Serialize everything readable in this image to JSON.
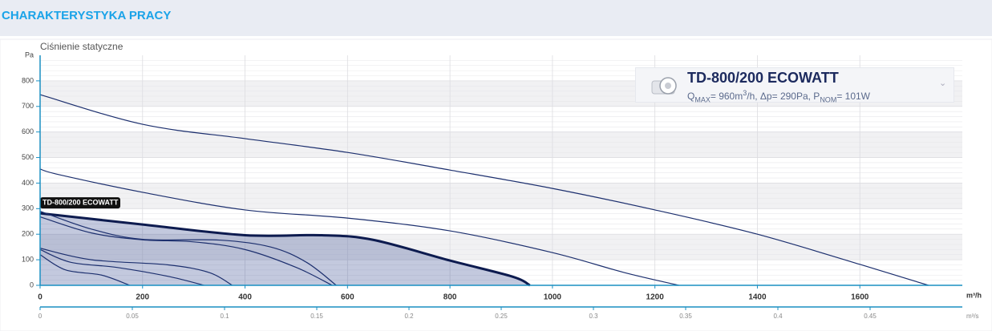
{
  "header": {
    "title": "CHARAKTERYSTYKA PRACY"
  },
  "card": {
    "title": "TD-800/200 ECOWATT",
    "spec": [
      {
        "text": "Q"
      },
      {
        "text": "MAX",
        "sub": true
      },
      {
        "text": "= 960m"
      },
      {
        "text": "3",
        "sup": true
      },
      {
        "text": "/h, Δp= 290Pa, P"
      },
      {
        "text": "NOM",
        "sub": true
      },
      {
        "text": "= 101W"
      }
    ]
  },
  "chart_data": {
    "type": "line",
    "ylabel": "Ciśnienie statyczne",
    "y_unit": "Pa",
    "x_unit": "m³/h",
    "x2_unit": "m³/s",
    "xlim": [
      0,
      1800
    ],
    "xticks": [
      0,
      200,
      400,
      600,
      800,
      1000,
      1200,
      1400,
      1600
    ],
    "x2lim": [
      0,
      0.5
    ],
    "x2ticks": [
      0,
      0.05,
      0.1,
      0.15,
      0.2,
      0.25,
      0.3,
      0.35,
      0.4,
      0.45
    ],
    "ylim": [
      0,
      900
    ],
    "yticks": [
      0,
      100,
      200,
      300,
      400,
      500,
      600,
      700,
      800
    ],
    "grid": true,
    "series": [
      {
        "name": "TD-800/200 ECOWATT",
        "color": "#0d1b4f",
        "highlight": true,
        "x": [
          0,
          200,
          400,
          550,
          650,
          800,
          922,
          956
        ],
        "values": [
          282,
          238,
          196,
          196,
          178,
          97,
          34,
          0
        ]
      },
      {
        "color": "#1c2f6e",
        "x": [
          0,
          200,
          400,
          600,
          800,
          1000,
          1200,
          1400,
          1600,
          1734
        ],
        "values": [
          746,
          630,
          574,
          520,
          451,
          379,
          295,
          200,
          82,
          0
        ]
      },
      {
        "color": "#1c2f6e",
        "x": [
          0,
          37,
          200,
          400,
          600,
          800,
          1000,
          1140,
          1247
        ],
        "values": [
          455,
          433,
          364,
          295,
          263,
          213,
          128,
          50,
          0
        ]
      },
      {
        "color": "#1c2f6e",
        "x": [
          0,
          100,
          200,
          350,
          450,
          520,
          578
        ],
        "values": [
          290,
          220,
          180,
          177,
          150,
          90,
          0
        ]
      },
      {
        "color": "#1c2f6e",
        "x": [
          0,
          100,
          200,
          300,
          400,
          500,
          570
        ],
        "values": [
          268,
          205,
          178,
          170,
          140,
          70,
          0
        ]
      },
      {
        "color": "#1c2f6e",
        "x": [
          0,
          100,
          250,
          330,
          375
        ],
        "values": [
          145,
          100,
          80,
          50,
          0
        ]
      },
      {
        "color": "#1c2f6e",
        "x": [
          0,
          60,
          150,
          250,
          320
        ],
        "values": [
          140,
          90,
          70,
          35,
          0
        ]
      },
      {
        "color": "#1c2f6e",
        "x": [
          0,
          50,
          120,
          175
        ],
        "values": [
          120,
          60,
          40,
          0
        ]
      }
    ]
  }
}
